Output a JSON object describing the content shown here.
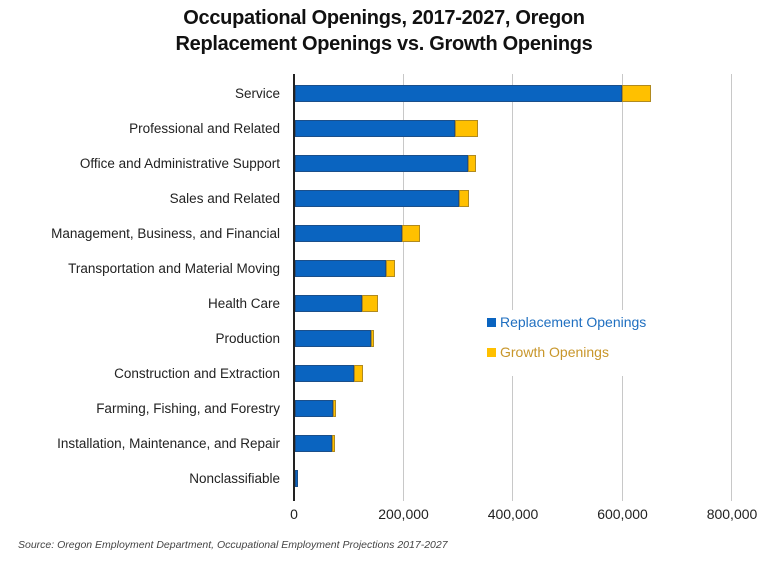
{
  "chart_data": {
    "type": "bar",
    "orientation": "horizontal",
    "stacked": true,
    "title": "Occupational Openings, 2017-2027, Oregon",
    "subtitle": "Replacement Openings vs. Growth Openings",
    "xlabel": "",
    "ylabel": "",
    "xlim": [
      0,
      800000
    ],
    "x_ticks": [
      "0",
      "200,000",
      "400,000",
      "600,000",
      "800,000"
    ],
    "grid": true,
    "legend_position": "right-center",
    "categories": [
      "Service",
      "Professional and Related",
      "Office and Administrative Support",
      "Sales and Related",
      "Management, Business, and Financial",
      "Transportation and Material Moving",
      "Health Care",
      "Production",
      "Construction and Extraction",
      "Farming, Fishing, and Forestry",
      "Installation, Maintenance, and Repair",
      "Nonclassifiable"
    ],
    "series": [
      {
        "name": "Replacement Openings",
        "color": "#0a64c0",
        "values": [
          597000,
          292000,
          316000,
          300000,
          195000,
          166000,
          122000,
          139000,
          108000,
          69000,
          68000,
          6000
        ]
      },
      {
        "name": "Growth Openings",
        "color": "#ffc000",
        "values": [
          53000,
          42000,
          15000,
          18000,
          33000,
          17000,
          29000,
          5000,
          16000,
          6000,
          5000,
          0
        ]
      }
    ],
    "source": "Source: Oregon Employment Department, Occupational Employment Projections 2017-2027"
  },
  "title_line1": "Occupational Openings, 2017-2027, Oregon",
  "title_line2": "Replacement Openings vs. Growth Openings",
  "legend": {
    "replacement": {
      "label": "Replacement Openings",
      "color": "#1f6fc0"
    },
    "growth": {
      "label": "Growth Openings",
      "color": "#c8962a"
    }
  }
}
